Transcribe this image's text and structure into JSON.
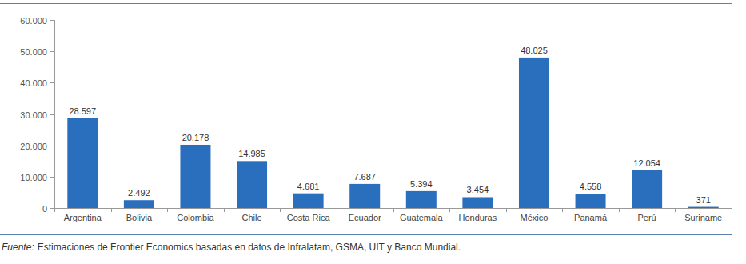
{
  "chart_data": {
    "type": "bar",
    "categories": [
      "Argentina",
      "Bolivia",
      "Colombia",
      "Chile",
      "Costa Rica",
      "Ecuador",
      "Guatemala",
      "Honduras",
      "México",
      "Panamá",
      "Perú",
      "Suriname"
    ],
    "values": [
      28597,
      2492,
      20178,
      14985,
      4681,
      7687,
      5394,
      3454,
      48025,
      4558,
      12054,
      371
    ],
    "value_labels": [
      "28.597",
      "2.492",
      "20.178",
      "14.985",
      "4.681",
      "7.687",
      "5.394",
      "3.454",
      "48.025",
      "4.558",
      "12.054",
      "371"
    ],
    "color": "#2a6fbd",
    "ylim": [
      0,
      60000
    ],
    "yticks": [
      0,
      {
        "value": 10000,
        "label": "10.000"
      },
      {
        "value": 20000,
        "label": "20.000"
      },
      {
        "value": 30000,
        "label": "30.000"
      },
      {
        "value": 40000,
        "label": "40.000"
      },
      {
        "value": 50000,
        "label": "50.000"
      },
      {
        "value": 60000,
        "label": "60.000"
      }
    ],
    "grid": false,
    "data_labels": true,
    "annotations": [
      "Fuente:",
      "Estimaciones de Frontier Economics basadas en datos de Infralatam, GSMA, UIT y Banco Mundial."
    ]
  }
}
